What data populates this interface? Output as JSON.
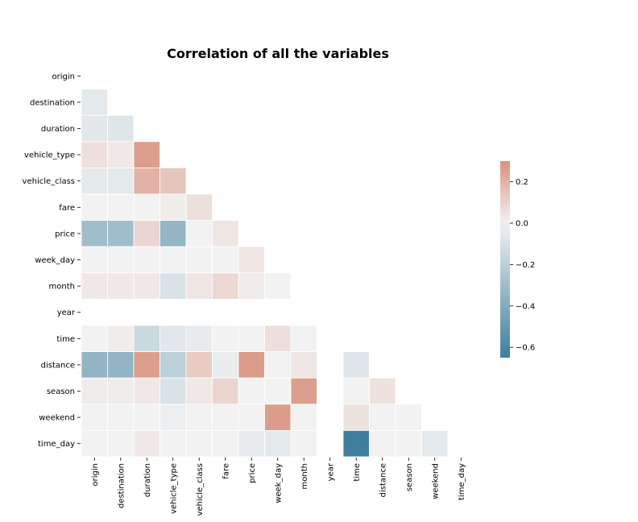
{
  "chart_data": {
    "type": "heatmap",
    "title": "Correlation of all the variables",
    "variables": [
      "origin",
      "destination",
      "duration",
      "vehicle_type",
      "vehicle_class",
      "fare",
      "price",
      "week_day",
      "month",
      "year",
      "time",
      "distance",
      "season",
      "weekend",
      "time_day"
    ],
    "mask": "upper triangle including diagonal",
    "matrix": [
      [
        null,
        null,
        null,
        null,
        null,
        null,
        null,
        null,
        null,
        null,
        null,
        null,
        null,
        null,
        null
      ],
      [
        -0.05,
        null,
        null,
        null,
        null,
        null,
        null,
        null,
        null,
        null,
        null,
        null,
        null,
        null,
        null
      ],
      [
        -0.06,
        -0.07,
        null,
        null,
        null,
        null,
        null,
        null,
        null,
        null,
        null,
        null,
        null,
        null,
        null
      ],
      [
        0.06,
        0.03,
        0.26,
        null,
        null,
        null,
        null,
        null,
        null,
        null,
        null,
        null,
        null,
        null,
        null
      ],
      [
        -0.05,
        -0.05,
        0.2,
        0.14,
        null,
        null,
        null,
        null,
        null,
        null,
        null,
        null,
        null,
        null,
        null
      ],
      [
        0.0,
        0.0,
        0.0,
        0.02,
        0.06,
        null,
        null,
        null,
        null,
        null,
        null,
        null,
        null,
        null,
        null
      ],
      [
        -0.3,
        -0.3,
        0.09,
        -0.34,
        0.0,
        0.04,
        null,
        null,
        null,
        null,
        null,
        null,
        null,
        null,
        null
      ],
      [
        0.0,
        0.0,
        0.0,
        0.0,
        0.0,
        0.0,
        0.04,
        null,
        null,
        null,
        null,
        null,
        null,
        null,
        null
      ],
      [
        0.03,
        0.03,
        0.03,
        -0.09,
        0.04,
        0.08,
        0.02,
        0.0,
        null,
        null,
        null,
        null,
        null,
        null,
        null
      ],
      [
        null,
        null,
        null,
        null,
        null,
        null,
        null,
        null,
        null,
        null,
        null,
        null,
        null,
        null,
        null
      ],
      [
        0.0,
        0.02,
        -0.14,
        -0.06,
        -0.04,
        0.0,
        0.0,
        0.06,
        0.0,
        null,
        null,
        null,
        null,
        null,
        null
      ],
      [
        -0.35,
        -0.35,
        0.26,
        -0.2,
        0.12,
        -0.03,
        0.27,
        0.0,
        0.04,
        null,
        -0.07,
        null,
        null,
        null,
        null
      ],
      [
        0.02,
        0.02,
        0.03,
        -0.09,
        0.03,
        0.09,
        0.0,
        0.0,
        0.26,
        null,
        0.0,
        0.05,
        null,
        null,
        null
      ],
      [
        0.0,
        0.0,
        0.0,
        -0.02,
        0.0,
        0.0,
        0.0,
        0.27,
        0.0,
        null,
        0.05,
        0.0,
        0.0,
        null,
        null
      ],
      [
        0.0,
        0.0,
        0.03,
        0.0,
        0.0,
        0.0,
        -0.04,
        -0.05,
        0.0,
        null,
        -0.65,
        0.0,
        0.0,
        -0.05,
        null
      ]
    ],
    "colorbar": {
      "ticks": [
        0.2,
        0.0,
        -0.2,
        -0.4,
        -0.6
      ],
      "tick_labels": [
        "0.2",
        "0.0",
        "−0.2",
        "−0.4",
        "−0.6"
      ],
      "range": [
        -0.65,
        0.3
      ]
    },
    "colormap": {
      "negative": "#3f7f9d",
      "zero": "#f2f2f2",
      "positive": "#d9927f"
    },
    "xlabel": "",
    "ylabel": ""
  }
}
